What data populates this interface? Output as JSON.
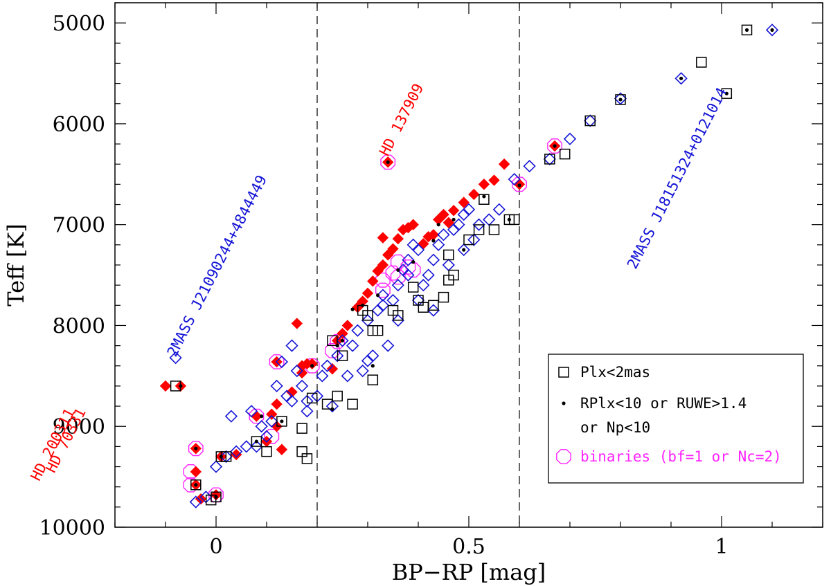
{
  "chart_data": {
    "type": "scatter",
    "xlabel": "BP−RP  [mag]",
    "ylabel": "Teff  [K]",
    "xlim": [
      -0.2,
      1.2
    ],
    "ylim": [
      10000,
      4800
    ],
    "y_inverted": true,
    "x_ticks": [
      0,
      0.5,
      1
    ],
    "x_tick_labels": [
      "0",
      "0.5",
      "1"
    ],
    "y_ticks": [
      5000,
      6000,
      7000,
      8000,
      9000,
      10000
    ],
    "y_tick_labels": [
      "5000",
      "6000",
      "7000",
      "8000",
      "9000",
      "10000"
    ],
    "vlines": [
      0.2,
      0.6
    ],
    "colors": {
      "blue": "#1515d6",
      "red": "#ff0000",
      "magenta": "#ff22ff",
      "black": "#000000"
    },
    "series": [
      {
        "name": "blue open diamonds",
        "marker": "open-diamond",
        "color": "#1515d6",
        "points": [
          [
            -0.08,
            8320
          ],
          [
            0.13,
            8360
          ],
          [
            0.15,
            8200
          ],
          [
            0.16,
            8450
          ],
          [
            0.17,
            8600
          ],
          [
            0.15,
            8750
          ],
          [
            0.18,
            8850
          ],
          [
            0.2,
            8700
          ],
          [
            0.21,
            8500
          ],
          [
            0.22,
            8400
          ],
          [
            0.24,
            8300
          ],
          [
            0.25,
            8150
          ],
          [
            0.27,
            8200
          ],
          [
            0.28,
            8050
          ],
          [
            0.3,
            7950
          ],
          [
            0.32,
            7850
          ],
          [
            0.33,
            7700
          ],
          [
            0.35,
            7750
          ],
          [
            0.36,
            7600
          ],
          [
            0.37,
            7450
          ],
          [
            0.38,
            7350
          ],
          [
            0.39,
            7200
          ],
          [
            0.4,
            7250
          ],
          [
            0.41,
            7600
          ],
          [
            0.42,
            7500
          ],
          [
            0.43,
            7350
          ],
          [
            0.44,
            7200
          ],
          [
            0.45,
            7100
          ],
          [
            0.47,
            7050
          ],
          [
            0.48,
            7000
          ],
          [
            0.49,
            6900
          ],
          [
            0.5,
            6850
          ],
          [
            0.52,
            7000
          ],
          [
            0.54,
            6950
          ],
          [
            0.56,
            6850
          ],
          [
            0.59,
            6550
          ],
          [
            0.62,
            6420
          ],
          [
            0.66,
            6350
          ],
          [
            0.7,
            6150
          ],
          [
            0.74,
            5970
          ],
          [
            0.8,
            5750
          ],
          [
            0.92,
            5550
          ],
          [
            1.1,
            5070
          ],
          [
            0.12,
            8600
          ],
          [
            0.14,
            8700
          ],
          [
            0.1,
            9100
          ],
          [
            0.08,
            9200
          ],
          [
            0.06,
            9200
          ],
          [
            0.04,
            9250
          ],
          [
            0.02,
            9300
          ],
          [
            0.0,
            9400
          ],
          [
            -0.02,
            9700
          ],
          [
            -0.04,
            9750
          ],
          [
            0.03,
            8900
          ],
          [
            0.07,
            8850
          ],
          [
            0.09,
            9000
          ],
          [
            0.11,
            8950
          ],
          [
            0.18,
            8750
          ],
          [
            0.23,
            8800
          ],
          [
            0.26,
            8500
          ],
          [
            0.29,
            8450
          ],
          [
            0.31,
            8300
          ],
          [
            0.34,
            8200
          ],
          [
            0.36,
            7950
          ],
          [
            0.4,
            7750
          ],
          [
            0.43,
            7850
          ],
          [
            0.49,
            7250
          ],
          [
            0.51,
            7150
          ],
          [
            0.46,
            7400
          ],
          [
            0.38,
            7500
          ],
          [
            0.33,
            7800
          ],
          [
            0.3,
            8350
          ]
        ]
      },
      {
        "name": "Plx<2mas (open squares)",
        "marker": "open-square",
        "color": "#000000",
        "points": [
          [
            -0.08,
            8600
          ],
          [
            0.18,
            9320
          ],
          [
            0.01,
            9300
          ],
          [
            0.02,
            9300
          ],
          [
            0.08,
            9150
          ],
          [
            0.1,
            9250
          ],
          [
            0.13,
            8950
          ],
          [
            0.17,
            9020
          ],
          [
            0.17,
            9250
          ],
          [
            0.19,
            8720
          ],
          [
            0.22,
            8780
          ],
          [
            0.24,
            8700
          ],
          [
            0.27,
            8780
          ],
          [
            0.23,
            8150
          ],
          [
            0.25,
            8300
          ],
          [
            0.29,
            7850
          ],
          [
            0.3,
            7900
          ],
          [
            0.31,
            8050
          ],
          [
            0.32,
            8050
          ],
          [
            0.31,
            8540
          ],
          [
            0.35,
            7850
          ],
          [
            0.36,
            7900
          ],
          [
            0.39,
            7620
          ],
          [
            0.4,
            7750
          ],
          [
            0.41,
            7820
          ],
          [
            0.43,
            7800
          ],
          [
            0.45,
            7720
          ],
          [
            0.46,
            7550
          ],
          [
            0.47,
            7500
          ],
          [
            0.46,
            7300
          ],
          [
            0.5,
            7150
          ],
          [
            0.52,
            7050
          ],
          [
            0.53,
            6750
          ],
          [
            0.55,
            7050
          ],
          [
            0.58,
            6950
          ],
          [
            0.59,
            6950
          ],
          [
            0.66,
            6350
          ],
          [
            0.69,
            6300
          ],
          [
            0.74,
            5970
          ],
          [
            0.8,
            5760
          ],
          [
            0.96,
            5390
          ],
          [
            1.01,
            5700
          ],
          [
            1.05,
            5070
          ],
          [
            -0.04,
            9580
          ],
          [
            0.0,
            9700
          ],
          [
            -0.01,
            9730
          ]
        ]
      },
      {
        "name": "red filled diamonds",
        "marker": "filled-diamond",
        "color": "#ff0000",
        "points": [
          [
            -0.1,
            8600
          ],
          [
            -0.07,
            8600
          ],
          [
            -0.04,
            9220
          ],
          [
            -0.04,
            9450
          ],
          [
            -0.04,
            9580
          ],
          [
            -0.03,
            9720
          ],
          [
            0.0,
            9680
          ],
          [
            0.01,
            9300
          ],
          [
            0.04,
            9280
          ],
          [
            0.08,
            8900
          ],
          [
            0.1,
            9150
          ],
          [
            0.12,
            9000
          ],
          [
            0.13,
            9230
          ],
          [
            0.11,
            8880
          ],
          [
            0.12,
            8780
          ],
          [
            0.15,
            8660
          ],
          [
            0.17,
            8470
          ],
          [
            0.17,
            8400
          ],
          [
            0.18,
            8380
          ],
          [
            0.19,
            8380
          ],
          [
            0.16,
            7980
          ],
          [
            0.12,
            8360
          ],
          [
            0.23,
            8430
          ],
          [
            0.24,
            8150
          ],
          [
            0.25,
            8080
          ],
          [
            0.26,
            8000
          ],
          [
            0.28,
            7820
          ],
          [
            0.29,
            7760
          ],
          [
            0.3,
            7680
          ],
          [
            0.31,
            7560
          ],
          [
            0.32,
            7460
          ],
          [
            0.33,
            7400
          ],
          [
            0.34,
            7300
          ],
          [
            0.35,
            7240
          ],
          [
            0.36,
            7140
          ],
          [
            0.37,
            7050
          ],
          [
            0.38,
            7030
          ],
          [
            0.39,
            7000
          ],
          [
            0.41,
            7190
          ],
          [
            0.42,
            7120
          ],
          [
            0.43,
            7100
          ],
          [
            0.44,
            6950
          ],
          [
            0.45,
            6900
          ],
          [
            0.46,
            6980
          ],
          [
            0.47,
            6860
          ],
          [
            0.49,
            6780
          ],
          [
            0.51,
            6700
          ],
          [
            0.53,
            6600
          ],
          [
            0.55,
            6560
          ],
          [
            0.57,
            6400
          ],
          [
            0.6,
            6600
          ],
          [
            0.67,
            6220
          ],
          [
            0.34,
            6380
          ],
          [
            0.33,
            7130
          ]
        ]
      },
      {
        "name": "RPlx<10 or RUWE>1.4 or Np<10 (black dots)",
        "marker": "dot",
        "color": "#000000",
        "points": [
          [
            -0.04,
            9220
          ],
          [
            -0.04,
            9580
          ],
          [
            0.0,
            9700
          ],
          [
            0.01,
            9300
          ],
          [
            0.08,
            9150
          ],
          [
            0.09,
            8900
          ],
          [
            0.13,
            8950
          ],
          [
            0.19,
            8400
          ],
          [
            0.23,
            8830
          ],
          [
            0.24,
            8200
          ],
          [
            0.25,
            8150
          ],
          [
            0.29,
            7800
          ],
          [
            0.31,
            8400
          ],
          [
            0.32,
            7700
          ],
          [
            0.34,
            6380
          ],
          [
            0.36,
            7450
          ],
          [
            0.39,
            7370
          ],
          [
            0.43,
            7160
          ],
          [
            0.44,
            7000
          ],
          [
            0.47,
            6950
          ],
          [
            0.49,
            7250
          ],
          [
            0.53,
            6720
          ],
          [
            0.58,
            6950
          ],
          [
            0.6,
            6610
          ],
          [
            0.67,
            6220
          ],
          [
            0.8,
            5760
          ],
          [
            0.92,
            5550
          ],
          [
            1.05,
            5070
          ],
          [
            1.1,
            5070
          ],
          [
            1.01,
            5700
          ],
          [
            -0.07,
            8600
          ],
          [
            0.27,
            7840
          ]
        ]
      },
      {
        "name": "binaries (bf=1 or Nc=2)",
        "marker": "open-octagon",
        "color": "#ff22ff",
        "points": [
          [
            -0.04,
            9220
          ],
          [
            -0.05,
            9450
          ],
          [
            -0.05,
            9580
          ],
          [
            0.0,
            9680
          ],
          [
            0.08,
            8900
          ],
          [
            0.11,
            9100
          ],
          [
            0.12,
            8360
          ],
          [
            0.19,
            8400
          ],
          [
            0.23,
            8250
          ],
          [
            0.24,
            8160
          ],
          [
            0.33,
            7650
          ],
          [
            0.33,
            7550
          ],
          [
            0.34,
            6380
          ],
          [
            0.36,
            7370
          ],
          [
            0.35,
            7480
          ],
          [
            0.36,
            7520
          ],
          [
            0.38,
            7420
          ],
          [
            0.39,
            7450
          ],
          [
            0.6,
            6600
          ],
          [
            0.67,
            6220
          ]
        ]
      }
    ],
    "annotations": [
      {
        "text": "2MASS J21090244+4844449",
        "x": -0.08,
        "y": 8320,
        "color": "#1515d6"
      },
      {
        "text": "2MASS J18151324+0121014",
        "x": 0.83,
        "y": 7450,
        "color": "#1515d6"
      },
      {
        "text": "HD 137909",
        "x": 0.34,
        "y": 6330,
        "color": "#ff0000"
      },
      {
        "text": "HD 200311",
        "x": -0.35,
        "y": 9550,
        "color": "#ff0000"
      },
      {
        "text": "HD 70331",
        "x": -0.32,
        "y": 9470,
        "color": "#ff0000"
      }
    ],
    "legend": {
      "position": "bottom-right",
      "entries": [
        {
          "marker": "open-square",
          "color": "#000000",
          "label": "Plx<2mas"
        },
        {
          "marker": "dot",
          "color": "#000000",
          "label": "RPlx<10 or RUWE>1.4"
        },
        {
          "marker": "none",
          "color": "#000000",
          "label": "or Np<10"
        },
        {
          "marker": "open-octagon",
          "color": "#ff22ff",
          "label": "binaries (bf=1 or Nc=2)"
        }
      ]
    }
  }
}
